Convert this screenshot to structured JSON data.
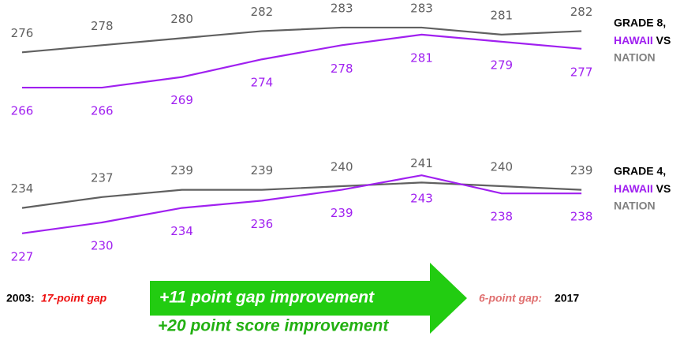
{
  "chart_data": [
    {
      "type": "line",
      "title": "GRADE 8,",
      "connector": "VS",
      "categories": [
        null,
        null,
        null,
        null,
        null,
        null,
        null,
        null
      ],
      "ylim": [
        264,
        285
      ],
      "series": [
        {
          "name": "HAWAII",
          "color": "#a020f0",
          "values": [
            266,
            266,
            269,
            274,
            278,
            281,
            279,
            277
          ]
        },
        {
          "name": "NATION",
          "color": "#606060",
          "values": [
            276,
            278,
            280,
            282,
            283,
            283,
            281,
            282
          ]
        }
      ]
    },
    {
      "type": "line",
      "title": "GRADE 4,",
      "connector": "VS",
      "categories": [
        null,
        null,
        null,
        null,
        null,
        null,
        null,
        null
      ],
      "ylim": [
        225,
        245
      ],
      "series": [
        {
          "name": "HAWAII",
          "color": "#a020f0",
          "values": [
            227,
            230,
            234,
            236,
            239,
            243,
            238,
            238
          ]
        },
        {
          "name": "NATION",
          "color": "#606060",
          "values": [
            234,
            237,
            239,
            239,
            240,
            241,
            240,
            239
          ]
        }
      ]
    }
  ],
  "footer": {
    "start_year": "2003:",
    "start_gap": "17-point gap",
    "arrow_text": "+11 point gap improvement",
    "end_gap": "6-point gap:",
    "end_year": "2017",
    "score_text": "+20 point score improvement"
  }
}
